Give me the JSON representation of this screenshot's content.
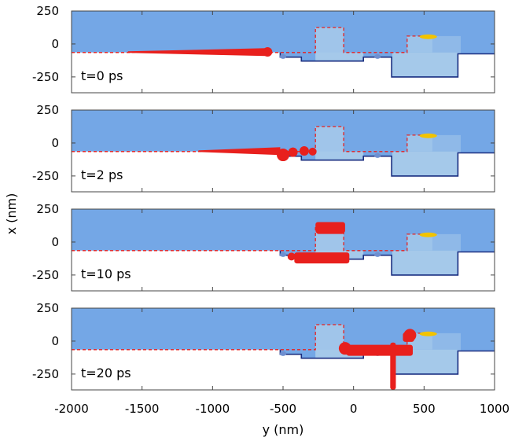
{
  "chart_data": {
    "type": "scatter",
    "xlabel": "y (nm)",
    "ylabel": "x (nm)",
    "xlim": [
      -2000,
      1000
    ],
    "ylim": [
      -370,
      250
    ],
    "x_ticks": [
      -2000,
      -1500,
      -1000,
      -500,
      0,
      500,
      1000
    ],
    "x_tick_labels": [
      "-2000",
      "-1500",
      "-1000",
      "-500",
      "0",
      "500",
      "1000"
    ],
    "y_ticks": [
      250,
      0,
      -250
    ],
    "y_tick_labels": [
      "250",
      "0",
      "-250"
    ],
    "grid": false,
    "colors": {
      "background_material": "#74a7e6",
      "structure": "#a5c9ea",
      "boundary": "#1b2f80",
      "path": "#e8201d",
      "particles": "#e8201d",
      "marker": "#f2c300"
    },
    "geometry": {
      "film_top": 250,
      "film_bottom_left": -65,
      "left_boundary_x_end": -520,
      "notch1": [
        -520,
        -370,
        -100
      ],
      "pocket_left_block": [
        -370,
        70,
        -130
      ],
      "notch2": [
        70,
        270,
        -100
      ],
      "pocket_right_block": [
        270,
        740,
        -250
      ],
      "right_bottom": -75,
      "dashed_path": [
        [
          -2000,
          -65
        ],
        [
          -270,
          -65
        ],
        [
          -270,
          125
        ],
        [
          -70,
          125
        ],
        [
          -70,
          -65
        ],
        [
          380,
          -65
        ],
        [
          380,
          60
        ],
        [
          560,
          60
        ]
      ],
      "gold_marker": [
        530,
        55
      ]
    },
    "panels": [
      {
        "label": "t=0 ps",
        "particles": [
          {
            "kind": "streak",
            "x0": -1600,
            "x1": -620,
            "y": -62,
            "w0": 2,
            "w1": 10
          },
          {
            "kind": "blob",
            "x": -610,
            "y": -60,
            "r": 6
          }
        ]
      },
      {
        "label": "t=2 ps",
        "particles": [
          {
            "kind": "streak",
            "x0": -1100,
            "x1": -520,
            "y": -62,
            "w0": 2,
            "w1": 10
          },
          {
            "kind": "blob",
            "x": -500,
            "y": -90,
            "r": 8
          },
          {
            "kind": "blob",
            "x": -430,
            "y": -70,
            "r": 6
          },
          {
            "kind": "blob",
            "x": -350,
            "y": -60,
            "r": 6
          },
          {
            "kind": "blob",
            "x": -290,
            "y": -65,
            "r": 5
          }
        ]
      },
      {
        "label": "t=10 ps",
        "particles": [
          {
            "kind": "bar",
            "x0": -270,
            "x1": -60,
            "y": 110,
            "h": 14
          },
          {
            "kind": "bar",
            "x0": -265,
            "x1": -65,
            "y": 85,
            "h": 8
          },
          {
            "kind": "bar",
            "x0": -420,
            "x1": -30,
            "y": -120,
            "h": 14
          },
          {
            "kind": "blob",
            "x": -440,
            "y": -110,
            "r": 5
          }
        ]
      },
      {
        "label": "t=20 ps",
        "particles": [
          {
            "kind": "bar",
            "x0": -50,
            "x1": 420,
            "y": -70,
            "h": 14
          },
          {
            "kind": "bar",
            "x0": 350,
            "x1": 430,
            "y": 30,
            "h": 12
          },
          {
            "kind": "bar",
            "x0": 260,
            "x1": 300,
            "y": -190,
            "h": 60
          },
          {
            "kind": "blob",
            "x": -60,
            "y": -55,
            "r": 8
          },
          {
            "kind": "blob",
            "x": 400,
            "y": 45,
            "r": 8
          }
        ]
      }
    ]
  }
}
